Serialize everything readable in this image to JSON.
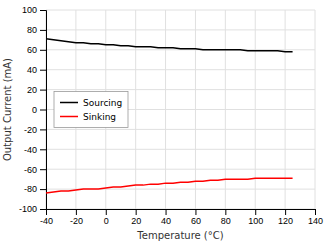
{
  "chart_data": {
    "type": "line",
    "x_label": "Temperature (°C)",
    "y_label": "Output Current (mA)",
    "xlim": [
      -40,
      140
    ],
    "ylim": [
      -100,
      100
    ],
    "xticks": [
      -40,
      -20,
      0,
      20,
      40,
      60,
      80,
      100,
      120,
      140
    ],
    "yticks": [
      -100,
      -80,
      -60,
      -40,
      -20,
      0,
      20,
      40,
      60,
      80,
      100
    ],
    "x": [
      -40,
      -35,
      -30,
      -25,
      -20,
      -15,
      -10,
      -5,
      0,
      5,
      10,
      15,
      20,
      25,
      30,
      35,
      40,
      45,
      50,
      55,
      60,
      65,
      70,
      75,
      80,
      85,
      90,
      95,
      100,
      105,
      110,
      115,
      120,
      125
    ],
    "series": [
      {
        "name": "Sourcing",
        "color": "#000000",
        "values": [
          71,
          70,
          69,
          68,
          67,
          67,
          66,
          66,
          65,
          65,
          64,
          64,
          63,
          63,
          63,
          62,
          62,
          62,
          61,
          61,
          61,
          60,
          60,
          60,
          60,
          60,
          60,
          59,
          59,
          59,
          59,
          59,
          58,
          58
        ]
      },
      {
        "name": "Sinking",
        "color": "#ff0000",
        "values": [
          -84,
          -83,
          -82,
          -82,
          -81,
          -80,
          -80,
          -80,
          -79,
          -78,
          -78,
          -77,
          -76,
          -76,
          -75,
          -75,
          -74,
          -74,
          -73,
          -73,
          -72,
          -72,
          -71,
          -71,
          -70,
          -70,
          -70,
          -70,
          -69,
          -69,
          -69,
          -69,
          -69,
          -69
        ]
      }
    ],
    "grid": true,
    "legend": "center left"
  }
}
